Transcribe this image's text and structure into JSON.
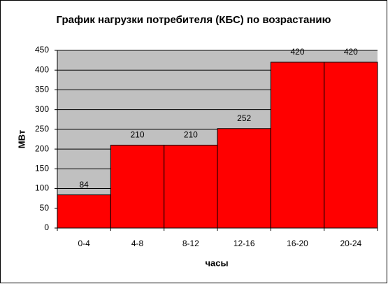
{
  "chart_data": {
    "type": "bar",
    "title": "График нагрузки потребителя (КБС) по возрастанию",
    "x_label": "часы",
    "y_label": "МВт",
    "categories": [
      "0-4",
      "4-8",
      "8-12",
      "12-16",
      "16-20",
      "20-24"
    ],
    "values": [
      84,
      210,
      210,
      252,
      420,
      420
    ],
    "color": "#ff0000",
    "plot_background": "#c0c0c0",
    "ylim": [
      0,
      450
    ],
    "yticks": [
      0,
      50,
      100,
      150,
      200,
      250,
      300,
      350,
      400,
      450
    ],
    "grid": true,
    "data_labels": true
  }
}
